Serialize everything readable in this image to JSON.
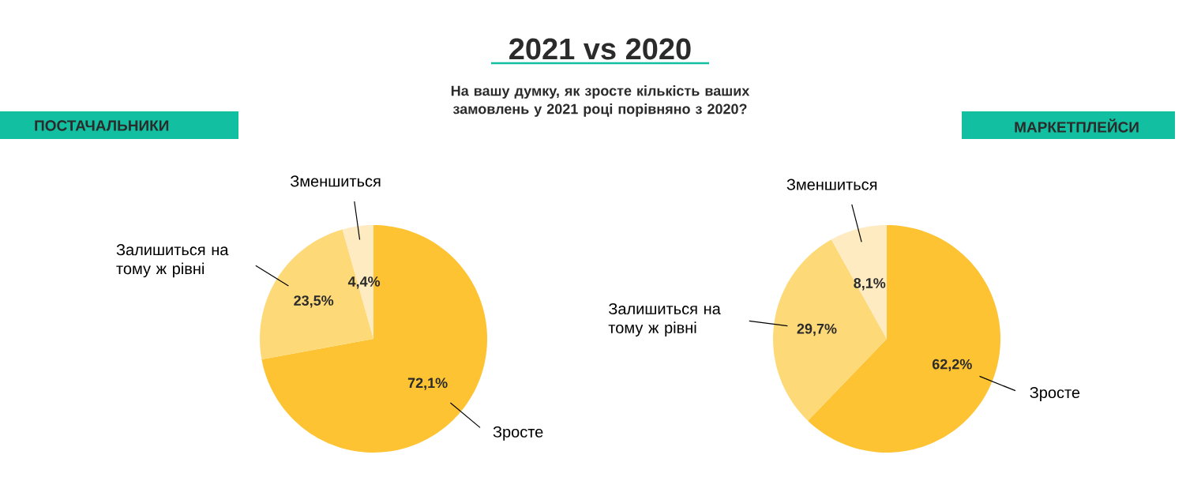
{
  "chart_data": [
    {
      "type": "pie",
      "title": "ПОСТАЧАЛЬНИКИ",
      "annotations": [
        "2021 vs 2020",
        "На вашу думку, як зросте кількість ваших замовлень у 2021 році порівняно з 2020?"
      ],
      "categories": [
        "Зросте",
        "Залишиться на тому ж рівні",
        "Зменшиться"
      ],
      "values": [
        72.1,
        23.5,
        4.4
      ],
      "value_labels": [
        "72,1%",
        "23,5%",
        "4,4%"
      ],
      "colors": [
        "#fdc332",
        "#fed978",
        "#feebc1"
      ]
    },
    {
      "type": "pie",
      "title": "МАРКЕТПЛЕЙСИ",
      "categories": [
        "Зросте",
        "Залишиться на тому ж рівні",
        "Зменшиться"
      ],
      "values": [
        62.2,
        29.7,
        8.1
      ],
      "value_labels": [
        "62,2%",
        "29,7%",
        "8,1%"
      ],
      "colors": [
        "#fdc332",
        "#fed978",
        "#feebc1"
      ]
    }
  ]
}
